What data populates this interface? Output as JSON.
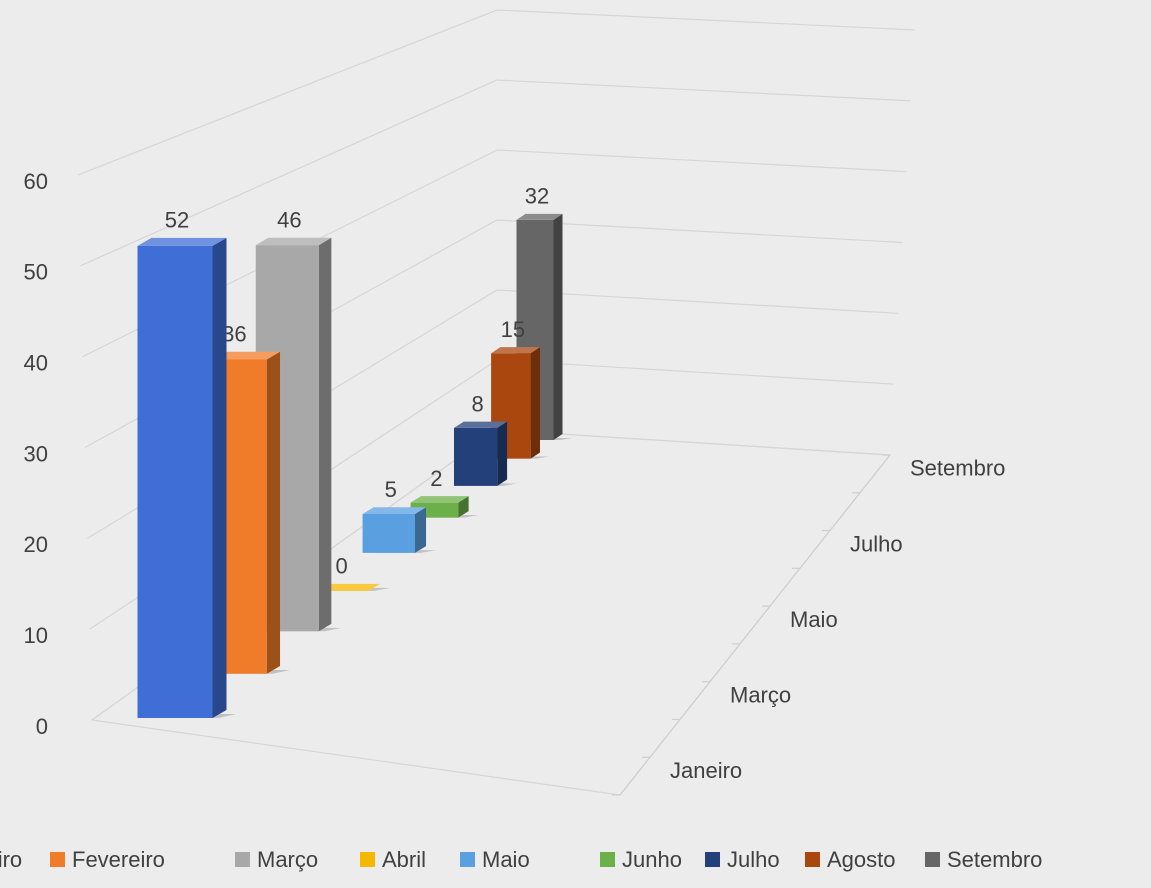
{
  "chart_data": {
    "type": "bar3d",
    "series": [
      {
        "name": "Janeiro",
        "color": "#3f6fd6",
        "values": [
          52
        ]
      },
      {
        "name": "Fevereiro",
        "color": "#f07c2a",
        "values": [
          36
        ]
      },
      {
        "name": "Março",
        "color": "#a8a8a8",
        "values": [
          46
        ]
      },
      {
        "name": "Abril",
        "color": "#f5b800",
        "values": [
          0
        ]
      },
      {
        "name": "Maio",
        "color": "#5aa0e0",
        "values": [
          5
        ]
      },
      {
        "name": "Junho",
        "color": "#6cb04a",
        "values": [
          2
        ]
      },
      {
        "name": "Julho",
        "color": "#23407a",
        "values": [
          8
        ]
      },
      {
        "name": "Agosto",
        "color": "#a9470f",
        "values": [
          15
        ]
      },
      {
        "name": "Setembro",
        "color": "#666666",
        "values": [
          32
        ]
      }
    ],
    "depth_categories": [
      "Janeiro",
      null,
      "Março",
      null,
      "Maio",
      null,
      "Julho",
      null,
      "Setembro"
    ],
    "ylim": [
      0,
      60
    ],
    "yticks": [
      0,
      10,
      20,
      30,
      40,
      50,
      60
    ],
    "grid": true,
    "legend": "bottom"
  }
}
